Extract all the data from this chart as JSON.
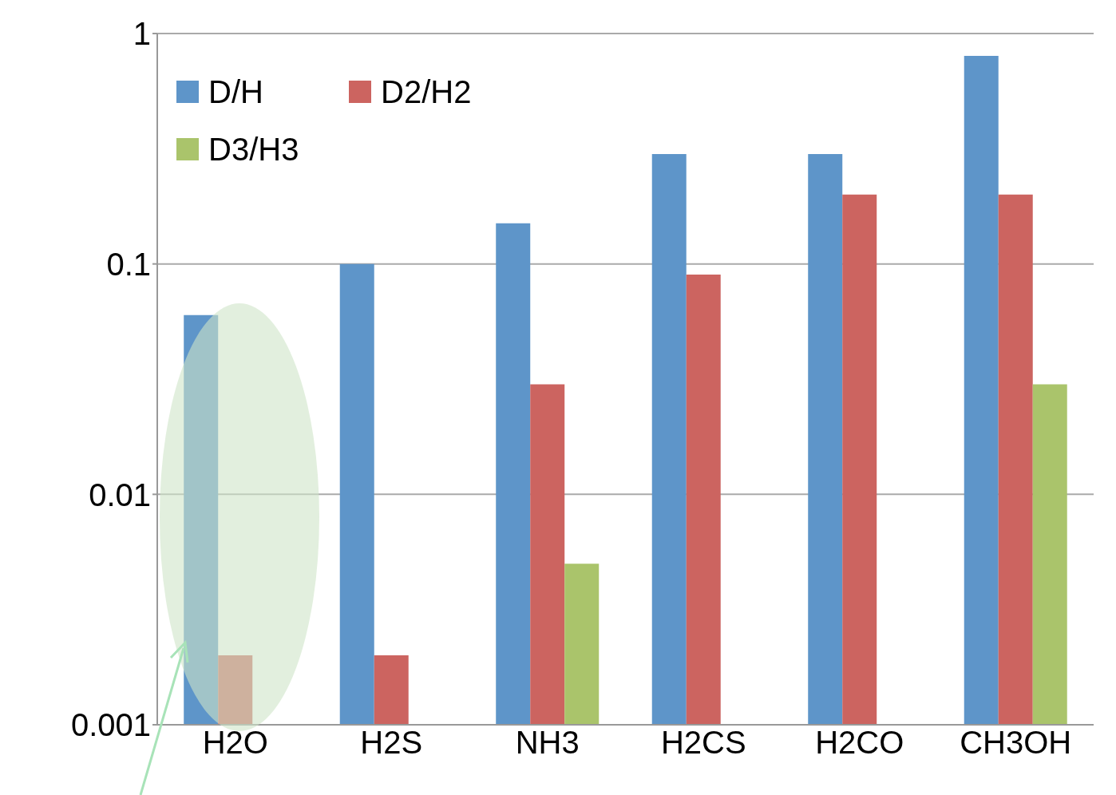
{
  "chart_data": {
    "type": "bar",
    "categories": [
      "H2O",
      "H2S",
      "NH3",
      "H2CS",
      "H2CO",
      "CH3OH"
    ],
    "series": [
      {
        "name": "D/H",
        "color": "#5e95c9",
        "values": [
          0.06,
          0.1,
          0.15,
          0.3,
          0.3,
          0.8
        ]
      },
      {
        "name": "D2/H2",
        "color": "#cc6460",
        "values": [
          0.002,
          0.002,
          0.03,
          0.09,
          0.2,
          0.2
        ]
      },
      {
        "name": "D3/H3",
        "color": "#aac46b",
        "values": [
          null,
          null,
          0.005,
          null,
          null,
          0.03
        ]
      }
    ],
    "log": true,
    "ylim": [
      0.001,
      1
    ],
    "yticks": [
      0.001,
      0.01,
      0.1,
      1
    ],
    "grid": "y",
    "legend": "top left"
  }
}
